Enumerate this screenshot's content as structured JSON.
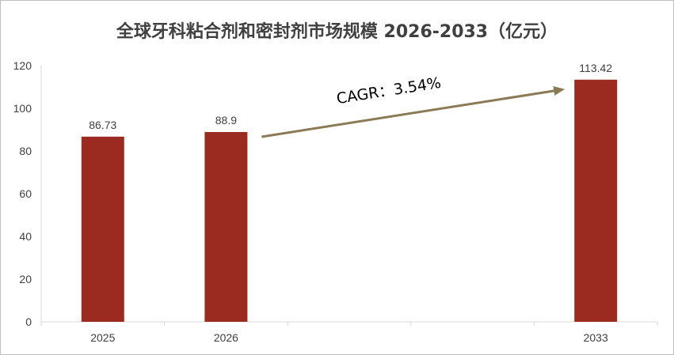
{
  "chart_data": {
    "type": "bar",
    "title": "全球牙科粘合剂和密封剂市场规模 2026-2033（亿元）",
    "categories": [
      "2025",
      "2026",
      "2033"
    ],
    "values": [
      86.73,
      88.9,
      113.42
    ],
    "value_labels": [
      "86.73",
      "88.9",
      "113.42"
    ],
    "ylim": [
      0,
      120
    ],
    "yticks": [
      0,
      20,
      40,
      60,
      80,
      100,
      120
    ],
    "xlabel": "",
    "ylabel": "",
    "grid": false,
    "legend": "none",
    "bar_color": "#9b2b20",
    "annotation": {
      "text": "CAGR：3.54%",
      "from_category": "2026",
      "to_category": "2033",
      "arrow_color": "#8b7a56"
    }
  }
}
